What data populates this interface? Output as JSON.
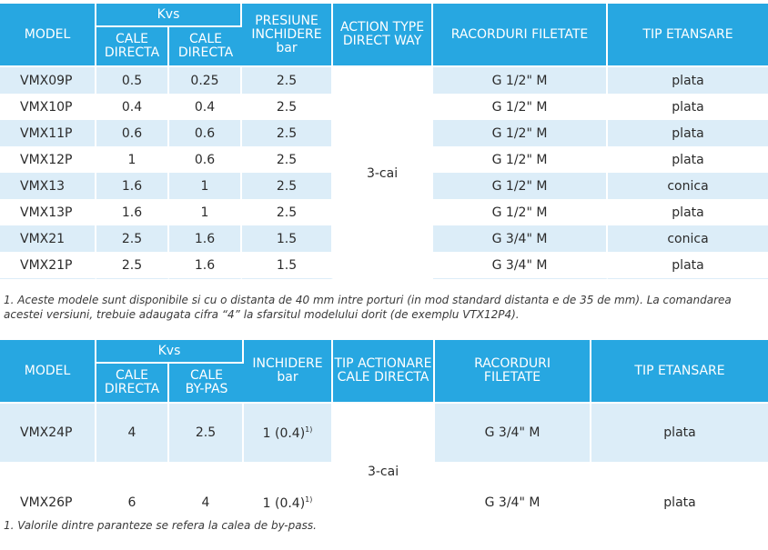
{
  "table1": {
    "headers": {
      "model": "MODEL",
      "kvs": "Kvs",
      "cale_directa_1": [
        "CALE",
        "DIRECTA"
      ],
      "cale_directa_2": [
        "CALE",
        "DIRECTA"
      ],
      "presiune": [
        "PRESIUNE",
        "INCHIDERE",
        "bar"
      ],
      "action_type": [
        "ACTION TYPE",
        "DIRECT WAY"
      ],
      "racorduri": "RACORDURI FILETATE",
      "tip_etansare": "TIP ETANSARE"
    },
    "rows": [
      {
        "model": "VMX09P",
        "kvs1": "0.5",
        "kvs2": "0.25",
        "presiune": "2.5",
        "racord": "G 1/2\" M",
        "etansare": "plata"
      },
      {
        "model": "VMX10P",
        "kvs1": "0.4",
        "kvs2": "0.4",
        "presiune": "2.5",
        "racord": "G 1/2\" M",
        "etansare": "plata"
      },
      {
        "model": "VMX11P",
        "kvs1": "0.6",
        "kvs2": "0.6",
        "presiune": "2.5",
        "racord": "G 1/2\" M",
        "etansare": "plata"
      },
      {
        "model": "VMX12P",
        "kvs1": "1",
        "kvs2": "0.6",
        "presiune": "2.5",
        "racord": "G 1/2\" M",
        "etansare": "plata"
      },
      {
        "model": "VMX13",
        "kvs1": "1.6",
        "kvs2": "1",
        "presiune": "2.5",
        "racord": "G 1/2\" M",
        "etansare": "conica"
      },
      {
        "model": "VMX13P",
        "kvs1": "1.6",
        "kvs2": "1",
        "presiune": "2.5",
        "racord": "G 1/2\" M",
        "etansare": "plata"
      },
      {
        "model": "VMX21",
        "kvs1": "2.5",
        "kvs2": "1.6",
        "presiune": "1.5",
        "racord": "G 3/4\" M",
        "etansare": "conica"
      },
      {
        "model": "VMX21P",
        "kvs1": "2.5",
        "kvs2": "1.6",
        "presiune": "1.5",
        "racord": "G 3/4\" M",
        "etansare": "plata"
      }
    ],
    "action_value": "3-cai",
    "note": "1. Aceste modele sunt disponibile si cu o distanta de 40 mm intre porturi (in mod standard distanta e de 35 de mm). La comandarea acestei versiuni, trebuie adaugata cifra “4” la sfarsitul modelului dorit (de exemplu VTX12P4)."
  },
  "table2": {
    "headers": {
      "model": "MODEL",
      "kvs": "Kvs",
      "cale_directa": [
        "CALE",
        "DIRECTA"
      ],
      "cale_bypas": [
        "CALE",
        "BY-PAS"
      ],
      "inchidere": [
        "INCHIDERE",
        "bar"
      ],
      "tip_actionare": [
        "TIP ACTIONARE",
        "CALE DIRECTA"
      ],
      "racorduri": [
        "RACORDURI",
        "FILETATE"
      ],
      "tip_etansare": "TIP ETANSARE"
    },
    "rows": [
      {
        "model": "VMX24P",
        "kvs1": "4",
        "kvs2": "2.5",
        "inchidere": "1 (0.4)",
        "sup": "1)",
        "racord": "G 3/4\" M",
        "etansare": "plata"
      },
      {
        "model": "VMX26P",
        "kvs1": "6",
        "kvs2": "4",
        "inchidere": "1 (0.4)",
        "sup": "1)",
        "racord": "G 3/4\" M",
        "etansare": "plata"
      }
    ],
    "action_value": "3-cai",
    "note": "1. Valorile dintre paranteze se refera la calea de by-pass."
  }
}
